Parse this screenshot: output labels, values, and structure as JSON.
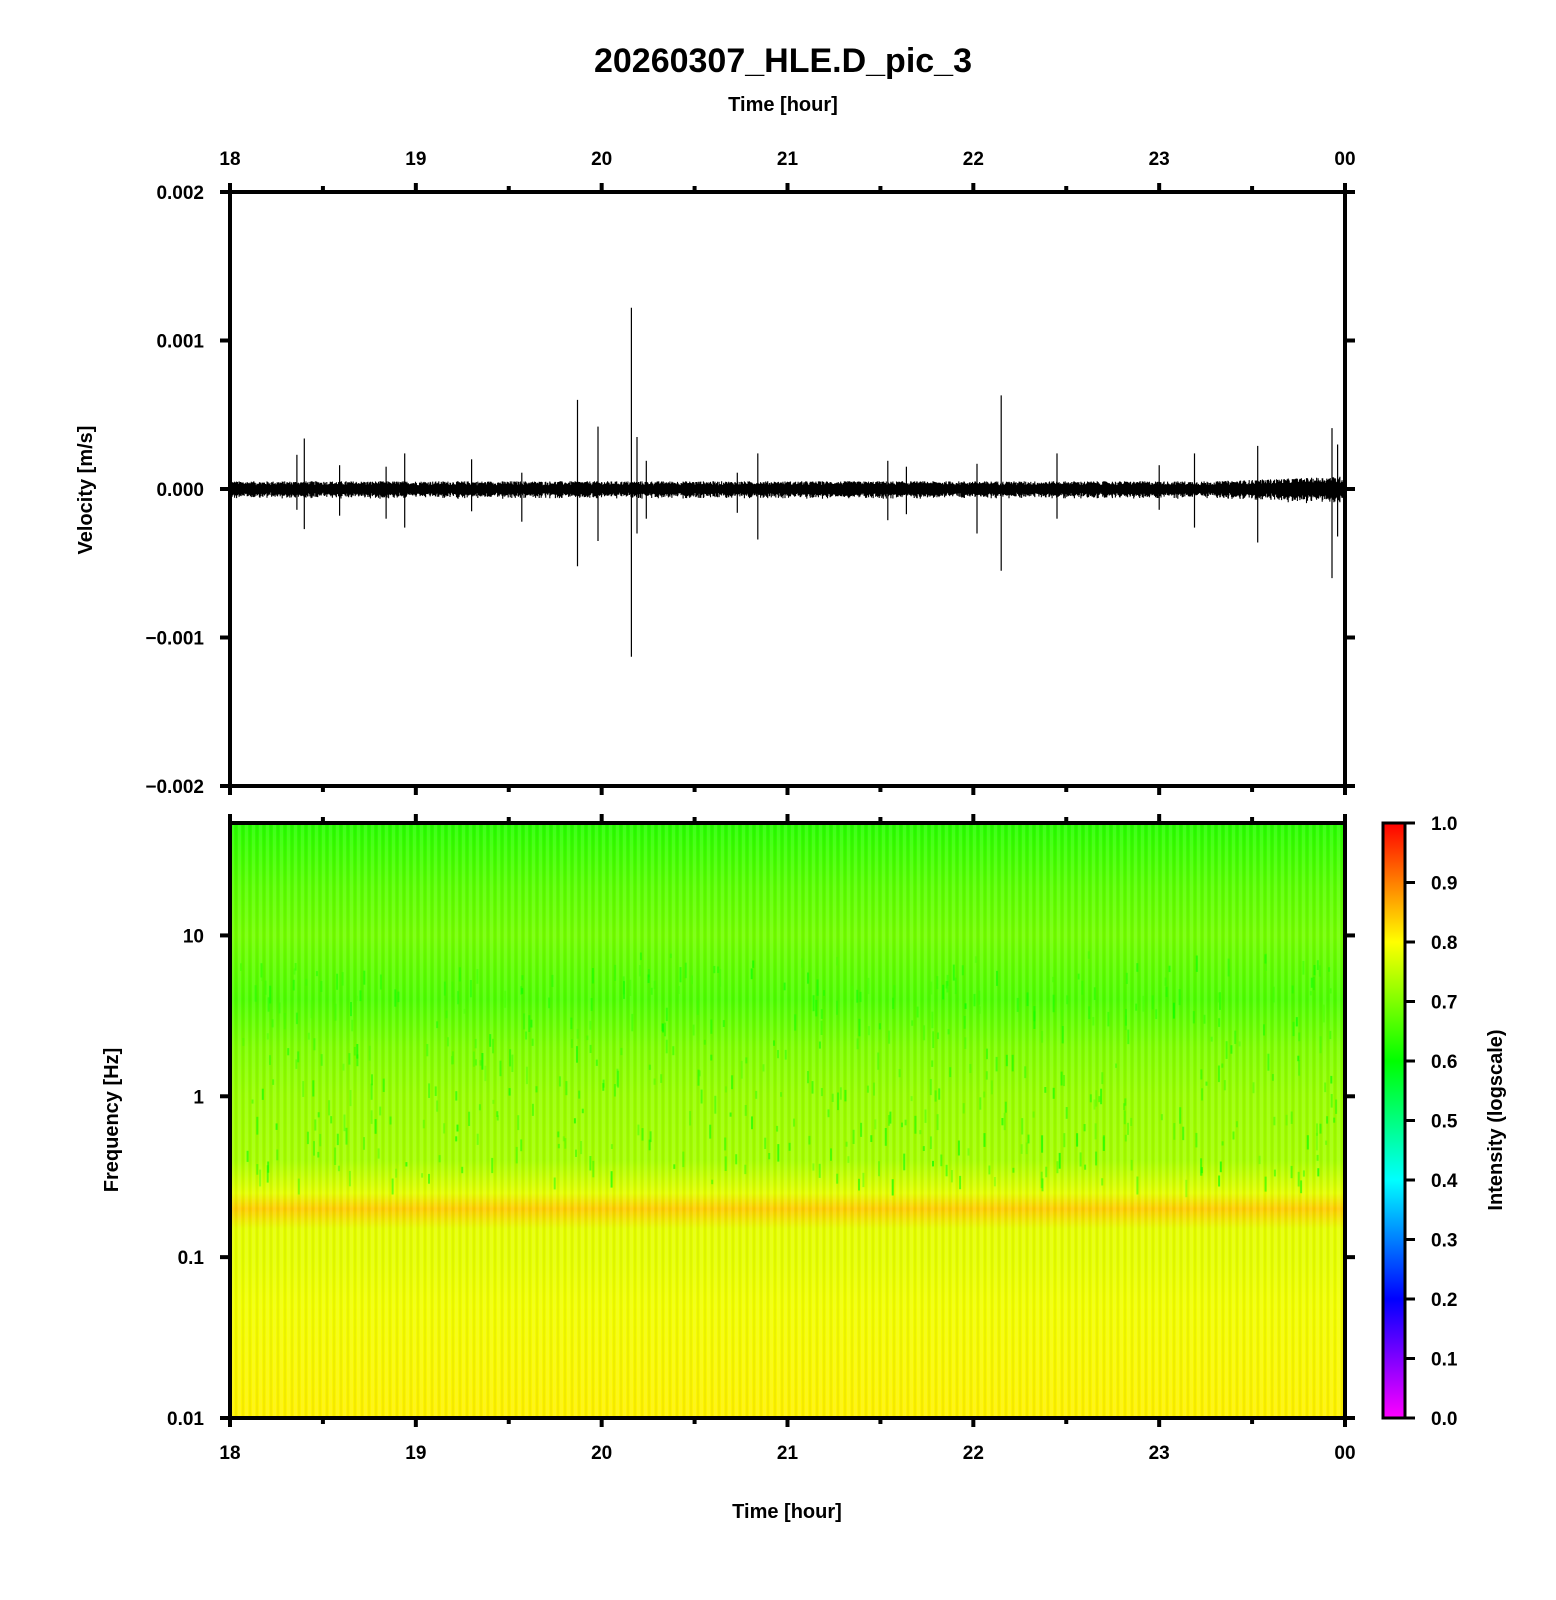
{
  "chart_data": [
    {
      "type": "line",
      "title": "20260307_HLE.D_pic_3",
      "xlabel": "Time [hour]",
      "ylabel": "Velocity [m/s]",
      "x_tick_labels": [
        "18",
        "19",
        "20",
        "21",
        "22",
        "23",
        "00"
      ],
      "x_range_hours": [
        18,
        24
      ],
      "ylim": [
        -0.002,
        0.002
      ],
      "y_ticks": [
        0.002,
        0.001,
        0.0,
        -0.001,
        -0.002
      ],
      "y_tick_labels": [
        "0.002",
        "0.001",
        "0.000",
        "−0.001",
        "−0.002"
      ],
      "grid": false,
      "baseline_noise_amplitude": 4e-05,
      "series": [
        {
          "spikes": [
            {
              "x": 18.36,
              "y_max": 0.00023,
              "y_min": -0.00014
            },
            {
              "x": 18.4,
              "y_max": 0.00034,
              "y_min": -0.00027
            },
            {
              "x": 18.59,
              "y_max": 0.00016,
              "y_min": -0.00018
            },
            {
              "x": 18.84,
              "y_max": 0.00015,
              "y_min": -0.0002
            },
            {
              "x": 18.94,
              "y_max": 0.00024,
              "y_min": -0.00026
            },
            {
              "x": 19.3,
              "y_max": 0.0002,
              "y_min": -0.00015
            },
            {
              "x": 19.57,
              "y_max": 0.00011,
              "y_min": -0.00022
            },
            {
              "x": 19.87,
              "y_max": 0.0006,
              "y_min": -0.00052
            },
            {
              "x": 19.98,
              "y_max": 0.00042,
              "y_min": -0.00035
            },
            {
              "x": 20.16,
              "y_max": 0.00122,
              "y_min": -0.00113
            },
            {
              "x": 20.19,
              "y_max": 0.00035,
              "y_min": -0.0003
            },
            {
              "x": 20.24,
              "y_max": 0.00019,
              "y_min": -0.0002
            },
            {
              "x": 20.73,
              "y_max": 0.00011,
              "y_min": -0.00016
            },
            {
              "x": 20.84,
              "y_max": 0.00024,
              "y_min": -0.00034
            },
            {
              "x": 21.54,
              "y_max": 0.00019,
              "y_min": -0.00021
            },
            {
              "x": 21.64,
              "y_max": 0.00015,
              "y_min": -0.00017
            },
            {
              "x": 22.02,
              "y_max": 0.00017,
              "y_min": -0.0003
            },
            {
              "x": 22.15,
              "y_max": 0.00063,
              "y_min": -0.00055
            },
            {
              "x": 22.45,
              "y_max": 0.00024,
              "y_min": -0.0002
            },
            {
              "x": 23.0,
              "y_max": 0.00016,
              "y_min": -0.00014
            },
            {
              "x": 23.19,
              "y_max": 0.00024,
              "y_min": -0.00026
            },
            {
              "x": 23.53,
              "y_max": 0.00029,
              "y_min": -0.00036
            },
            {
              "x": 23.93,
              "y_max": 0.00041,
              "y_min": -0.0006
            },
            {
              "x": 23.96,
              "y_max": 0.0003,
              "y_min": -0.00032
            }
          ]
        }
      ]
    },
    {
      "type": "heatmap",
      "xlabel": "Time [hour]",
      "ylabel": "Frequency [Hz]",
      "x_tick_labels": [
        "18",
        "19",
        "20",
        "21",
        "22",
        "23",
        "00"
      ],
      "x_range_hours": [
        18,
        24
      ],
      "y_scale": "log",
      "ylim": [
        0.01,
        50
      ],
      "y_ticks": [
        0.01,
        0.1,
        1,
        10
      ],
      "y_tick_labels": [
        "0.01",
        "0.1",
        "1",
        "10"
      ],
      "colorbar": {
        "label": "Intensity (logscale)",
        "range": [
          0.0,
          1.0
        ],
        "tick_labels": [
          "1.0",
          "0.9",
          "0.8",
          "0.7",
          "0.6",
          "0.5",
          "0.4",
          "0.3",
          "0.2",
          "0.1",
          "0.0"
        ],
        "colormap_stops": [
          {
            "value": 0.0,
            "color": "#ff00ff"
          },
          {
            "value": 0.2,
            "color": "#0000ff"
          },
          {
            "value": 0.4,
            "color": "#00ffff"
          },
          {
            "value": 0.6,
            "color": "#00ff00"
          },
          {
            "value": 0.8,
            "color": "#ffff00"
          },
          {
            "value": 1.0,
            "color": "#ff0000"
          }
        ]
      },
      "intensity_profile": [
        {
          "freq": 50,
          "intensity": 0.63
        },
        {
          "freq": 20,
          "intensity": 0.67
        },
        {
          "freq": 10,
          "intensity": 0.69
        },
        {
          "freq": 4,
          "intensity": 0.66
        },
        {
          "freq": 2,
          "intensity": 0.7
        },
        {
          "freq": 1,
          "intensity": 0.72
        },
        {
          "freq": 0.4,
          "intensity": 0.73
        },
        {
          "freq": 0.25,
          "intensity": 0.78
        },
        {
          "freq": 0.2,
          "intensity": 0.84
        },
        {
          "freq": 0.15,
          "intensity": 0.78
        },
        {
          "freq": 0.1,
          "intensity": 0.78
        },
        {
          "freq": 0.05,
          "intensity": 0.79
        },
        {
          "freq": 0.01,
          "intensity": 0.81
        }
      ]
    }
  ]
}
